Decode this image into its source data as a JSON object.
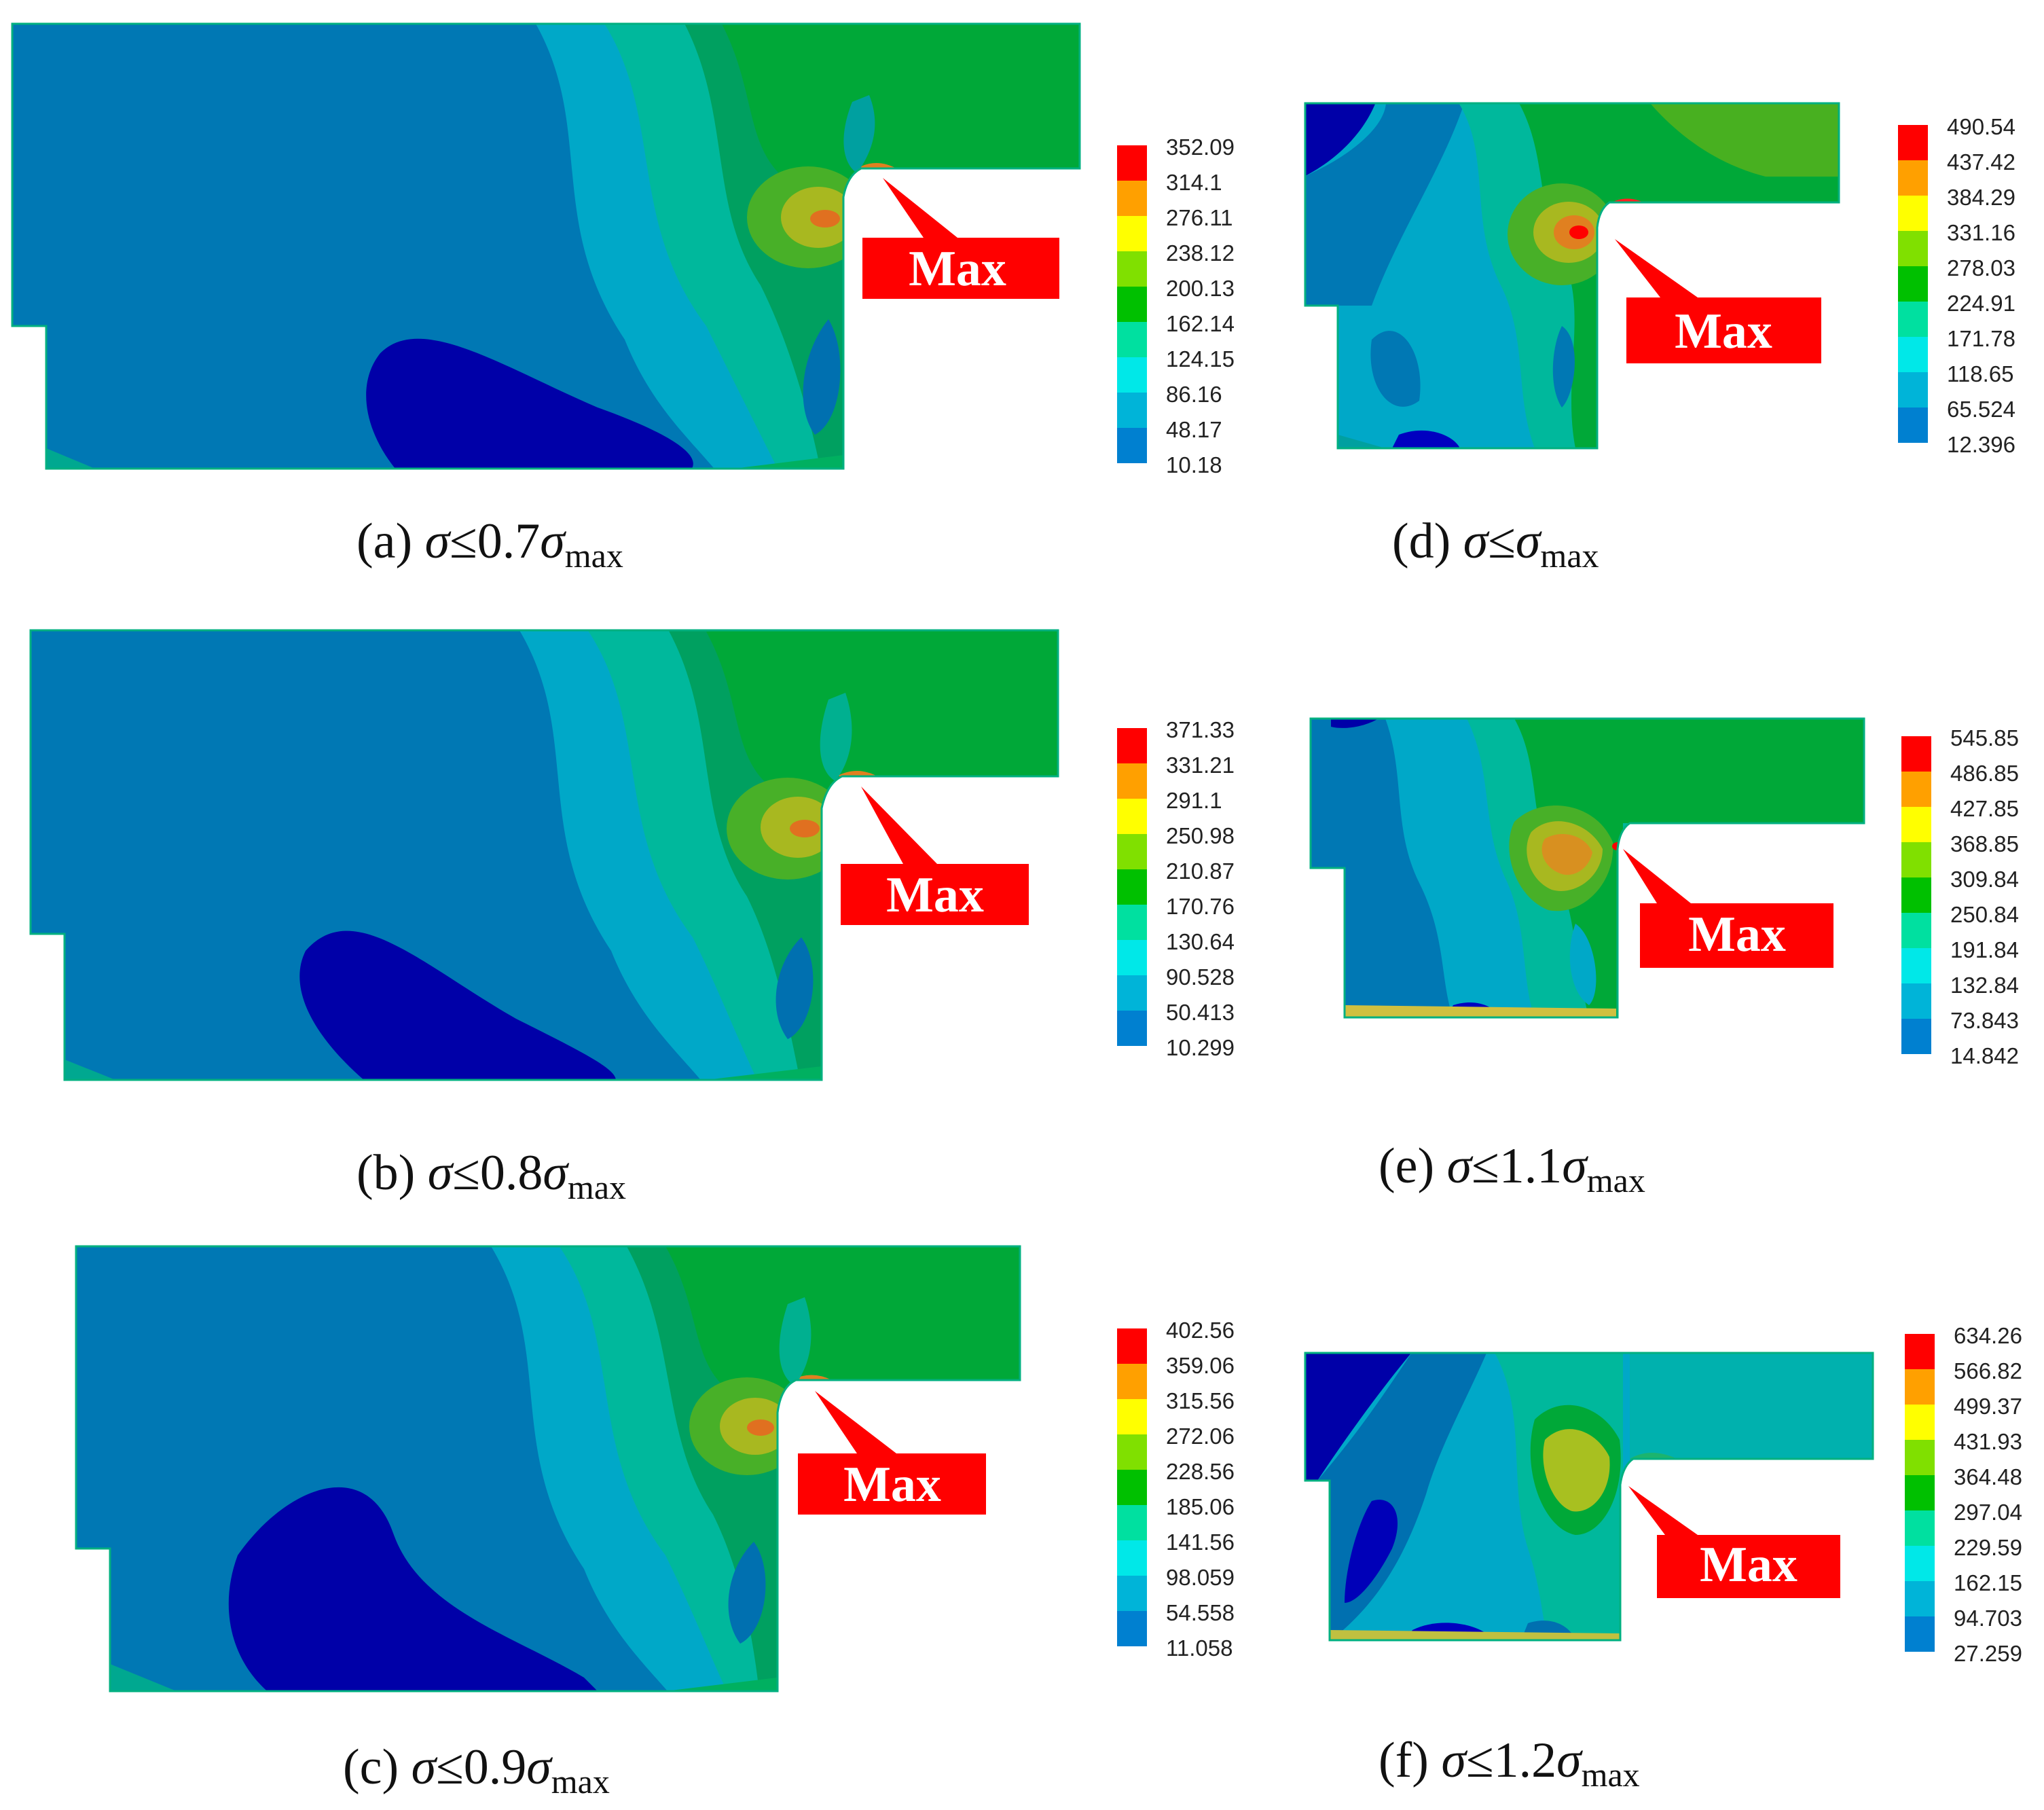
{
  "callout_label": "Max",
  "panels": [
    {
      "id": "a",
      "caption_label": "(a)",
      "caption_coef": "0.7",
      "legend": [
        "352.09",
        "314.1",
        "276.11",
        "238.12",
        "200.13",
        "162.14",
        "124.15",
        "86.16",
        "48.17",
        "10.18"
      ]
    },
    {
      "id": "b",
      "caption_label": "(b)",
      "caption_coef": "0.8",
      "legend": [
        "371.33",
        "331.21",
        "291.1",
        "250.98",
        "210.87",
        "170.76",
        "130.64",
        "90.528",
        "50.413",
        "10.299"
      ]
    },
    {
      "id": "c",
      "caption_label": "(c)",
      "caption_coef": "0.9",
      "legend": [
        "402.56",
        "359.06",
        "315.56",
        "272.06",
        "228.56",
        "185.06",
        "141.56",
        "98.059",
        "54.558",
        "11.058"
      ]
    },
    {
      "id": "d",
      "caption_label": "(d)",
      "caption_coef": "",
      "legend": [
        "490.54",
        "437.42",
        "384.29",
        "331.16",
        "278.03",
        "224.91",
        "171.78",
        "118.65",
        "65.524",
        "12.396"
      ]
    },
    {
      "id": "e",
      "caption_label": "(e)",
      "caption_coef": "1.1",
      "legend": [
        "545.85",
        "486.85",
        "427.85",
        "368.85",
        "309.84",
        "250.84",
        "191.84",
        "132.84",
        "73.843",
        "14.842"
      ]
    },
    {
      "id": "f",
      "caption_label": "(f)",
      "caption_coef": "1.2",
      "legend": [
        "634.26",
        "566.82",
        "499.37",
        "431.93",
        "364.48",
        "297.04",
        "229.59",
        "162.15",
        "94.703",
        "27.259"
      ]
    }
  ],
  "caption_symbol": "σ",
  "caption_relation": "≤",
  "caption_subscript": "max",
  "colormap": [
    "#0000ff",
    "#0080d0",
    "#00b4d8",
    "#00e8e8",
    "#00e0a0",
    "#00c000",
    "#80e000",
    "#ffff00",
    "#ffa000",
    "#ff0000"
  ]
}
